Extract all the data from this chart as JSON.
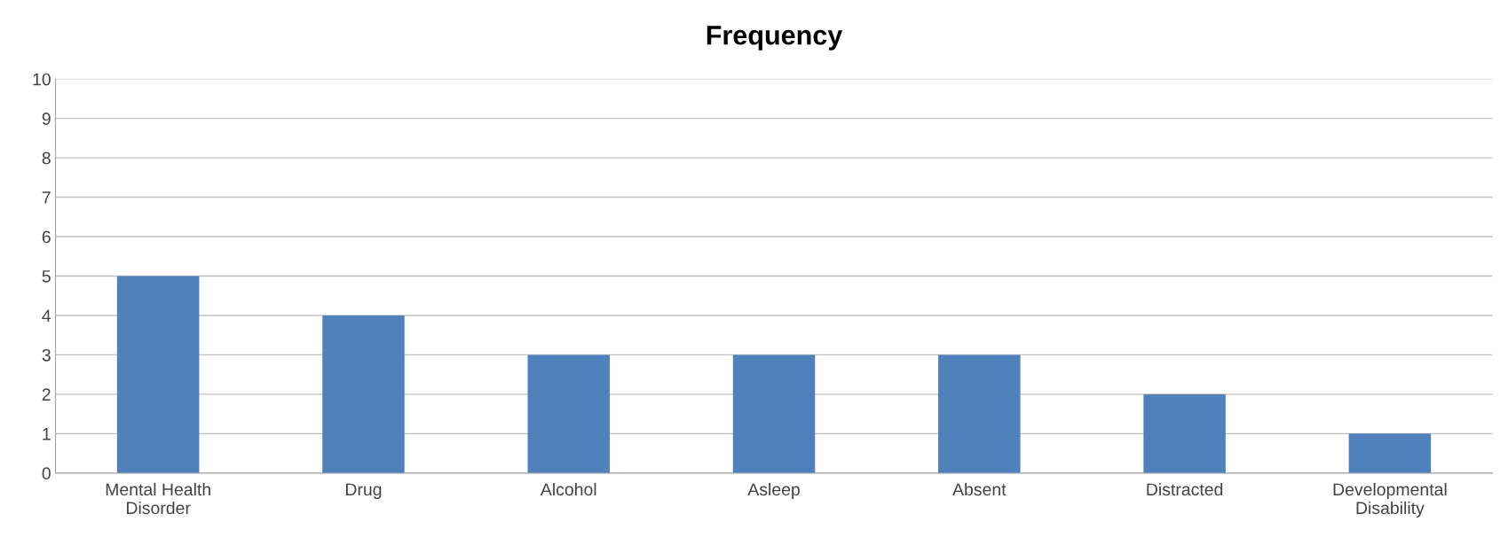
{
  "chart_data": {
    "type": "bar",
    "title": "Frequency",
    "categories": [
      "Mental Health\nDisorder",
      "Drug",
      "Alcohol",
      "Asleep",
      "Absent",
      "Distracted",
      "Developmental\nDisability"
    ],
    "values": [
      5,
      4,
      3,
      3,
      3,
      2,
      1
    ],
    "color": "#4f81bd",
    "ylim": [
      0,
      10
    ],
    "yticks": [
      0,
      1,
      2,
      3,
      4,
      5,
      6,
      7,
      8,
      9,
      10
    ],
    "grid": "y"
  }
}
